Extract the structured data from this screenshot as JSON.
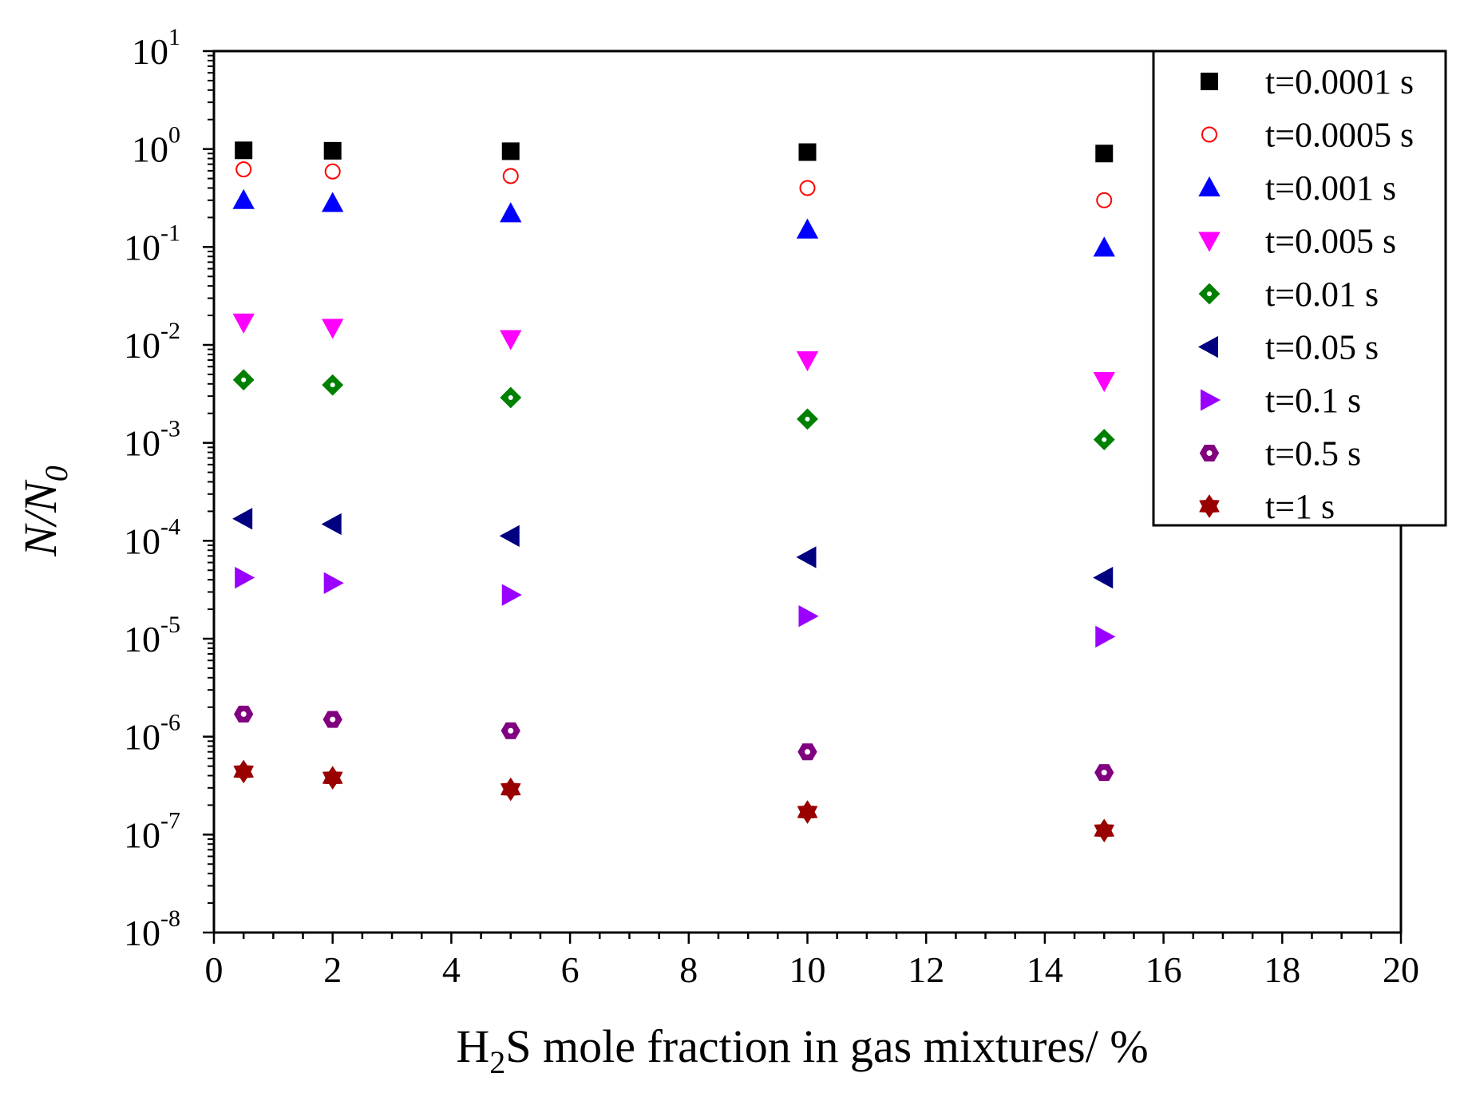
{
  "chart_data": {
    "type": "scatter",
    "title": "",
    "xlabel": {
      "prefix": "H",
      "sub": "2",
      "suffix": "S mole fraction in gas mixtures/ %"
    },
    "ylabel": {
      "base": "N/N",
      "sub": "0"
    },
    "xlim": [
      0,
      20
    ],
    "ylim_log10": [
      -8,
      1
    ],
    "yscale": "log",
    "x_ticks": [
      "0",
      "2",
      "4",
      "6",
      "8",
      "10",
      "12",
      "14",
      "16",
      "18",
      "20"
    ],
    "y_ticks": [
      {
        "base": "10",
        "exp": "1"
      },
      {
        "base": "10",
        "exp": "0"
      },
      {
        "base": "10",
        "exp": "-1"
      },
      {
        "base": "10",
        "exp": "-2"
      },
      {
        "base": "10",
        "exp": "-3"
      },
      {
        "base": "10",
        "exp": "-4"
      },
      {
        "base": "10",
        "exp": "-5"
      },
      {
        "base": "10",
        "exp": "-6"
      },
      {
        "base": "10",
        "exp": "-7"
      },
      {
        "base": "10",
        "exp": "-8"
      }
    ],
    "x": [
      0.5,
      2,
      5,
      10,
      15
    ],
    "legend_position": "top-right",
    "series": [
      {
        "name": "t=0.0001 s",
        "marker": "square",
        "color": "#000000",
        "values": [
          0.97,
          0.96,
          0.95,
          0.93,
          0.9
        ]
      },
      {
        "name": "t=0.0005 s",
        "marker": "circle",
        "color": "#ff0000",
        "values": [
          0.62,
          0.59,
          0.53,
          0.4,
          0.3
        ]
      },
      {
        "name": "t=0.001 s",
        "marker": "triangle-up",
        "color": "#0000ff",
        "values": [
          0.3,
          0.28,
          0.22,
          0.15,
          0.098
        ]
      },
      {
        "name": "t=0.005 s",
        "marker": "triangle-down",
        "color": "#ff00ff",
        "values": [
          0.017,
          0.015,
          0.0115,
          0.007,
          0.0043
        ]
      },
      {
        "name": "t=0.01 s",
        "marker": "diamond",
        "color": "#008000",
        "values": [
          0.0044,
          0.0039,
          0.0029,
          0.00175,
          0.00108
        ]
      },
      {
        "name": "t=0.05 s",
        "marker": "triangle-left",
        "color": "#000080",
        "values": [
          0.000168,
          0.000148,
          0.000112,
          6.8e-05,
          4.2e-05
        ]
      },
      {
        "name": "t=0.1 s",
        "marker": "triangle-right",
        "color": "#9900ff",
        "values": [
          4.2e-05,
          3.7e-05,
          2.8e-05,
          1.7e-05,
          1.05e-05
        ]
      },
      {
        "name": "t=0.5 s",
        "marker": "hexagon",
        "color": "#800080",
        "values": [
          1.7e-06,
          1.5e-06,
          1.15e-06,
          7e-07,
          4.3e-07
        ]
      },
      {
        "name": "t=1 s",
        "marker": "star",
        "color": "#990000",
        "values": [
          4.4e-07,
          3.8e-07,
          2.9e-07,
          1.7e-07,
          1.1e-07
        ]
      }
    ]
  }
}
